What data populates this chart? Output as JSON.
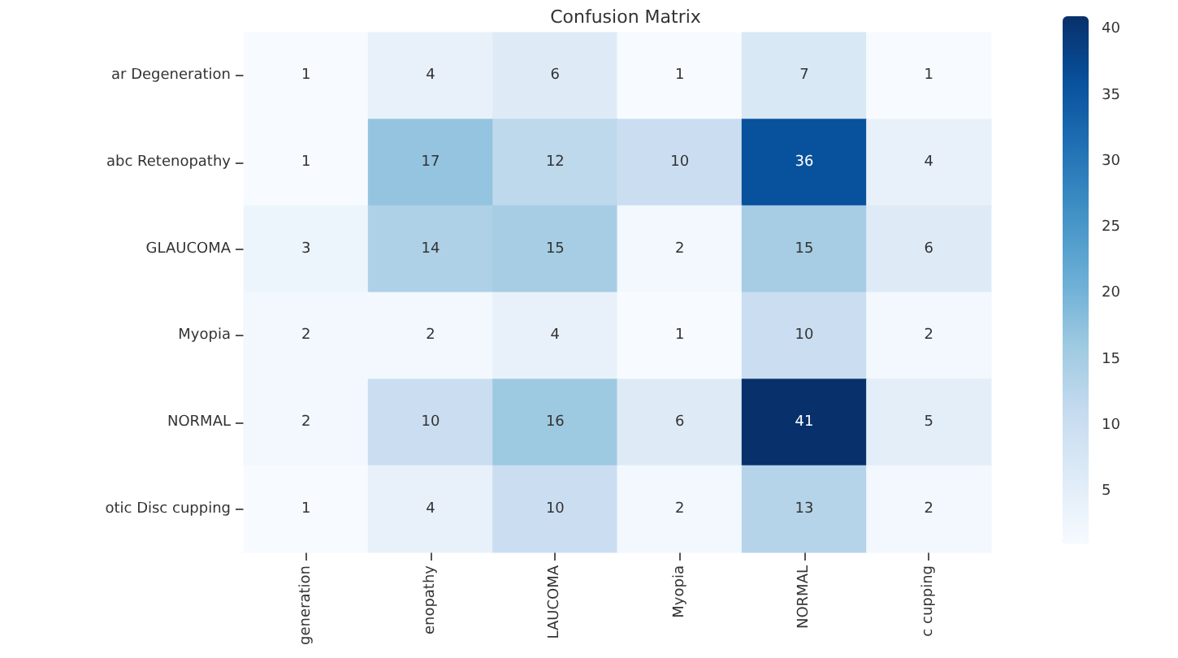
{
  "chart_data": {
    "type": "heatmap",
    "title": "Confusion Matrix",
    "categories": [
      "generation",
      "enopathy",
      "LAUCOMA",
      "Myopia",
      "NORMAL",
      "c cupping"
    ],
    "y_categories": [
      "ar Degeneration",
      "abc Retenopathy",
      "GLAUCOMA",
      "Myopia",
      "NORMAL",
      "otic Disc cupping"
    ],
    "cells": [
      [
        1,
        4,
        6,
        1,
        7,
        1
      ],
      [
        1,
        17,
        12,
        10,
        36,
        4
      ],
      [
        3,
        14,
        15,
        2,
        15,
        6
      ],
      [
        2,
        2,
        4,
        1,
        10,
        2
      ],
      [
        2,
        10,
        16,
        6,
        41,
        5
      ],
      [
        1,
        4,
        10,
        2,
        13,
        2
      ]
    ],
    "clim": [
      1,
      41
    ],
    "cticks": [
      5,
      10,
      15,
      20,
      25,
      30,
      35,
      40
    ],
    "data_labels": true
  }
}
